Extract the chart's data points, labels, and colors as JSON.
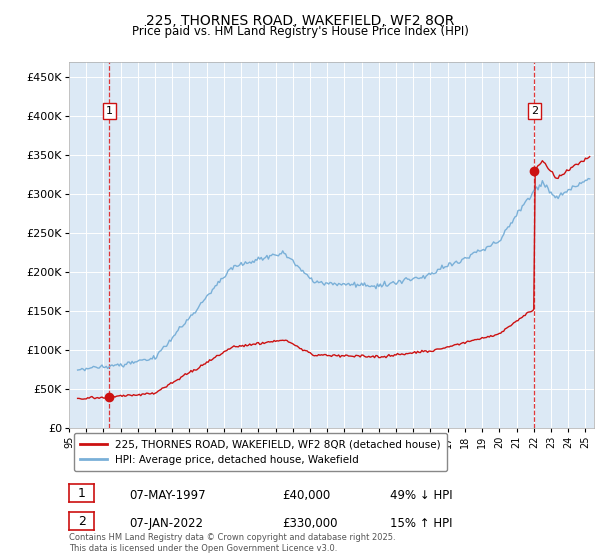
{
  "title": "225, THORNES ROAD, WAKEFIELD, WF2 8QR",
  "subtitle": "Price paid vs. HM Land Registry's House Price Index (HPI)",
  "ylim": [
    0,
    470000
  ],
  "yticks": [
    0,
    50000,
    100000,
    150000,
    200000,
    250000,
    300000,
    350000,
    400000,
    450000
  ],
  "ytick_labels": [
    "£0",
    "£50K",
    "£100K",
    "£150K",
    "£200K",
    "£250K",
    "£300K",
    "£350K",
    "£400K",
    "£450K"
  ],
  "xlim_start": 1995.25,
  "xlim_end": 2025.5,
  "bg_color": "#dce9f5",
  "grid_color": "#ffffff",
  "line_color_hpi": "#7ab0d8",
  "line_color_price": "#cc1111",
  "marker1_x": 1997.35,
  "marker1_y": 40000,
  "marker2_x": 2022.03,
  "marker2_y": 330000,
  "label1": "225, THORNES ROAD, WAKEFIELD, WF2 8QR (detached house)",
  "label2": "HPI: Average price, detached house, Wakefield",
  "annot1_date": "07-MAY-1997",
  "annot1_price": "£40,000",
  "annot1_hpi": "49% ↓ HPI",
  "annot2_date": "07-JAN-2022",
  "annot2_price": "£330,000",
  "annot2_hpi": "15% ↑ HPI",
  "footer": "Contains HM Land Registry data © Crown copyright and database right 2025.\nThis data is licensed under the Open Government Licence v3.0.",
  "xtick_years": [
    1995,
    1996,
    1997,
    1998,
    1999,
    2000,
    2001,
    2002,
    2003,
    2004,
    2005,
    2006,
    2007,
    2008,
    2009,
    2010,
    2011,
    2012,
    2013,
    2014,
    2015,
    2016,
    2017,
    2018,
    2019,
    2020,
    2021,
    2022,
    2023,
    2024,
    2025
  ]
}
